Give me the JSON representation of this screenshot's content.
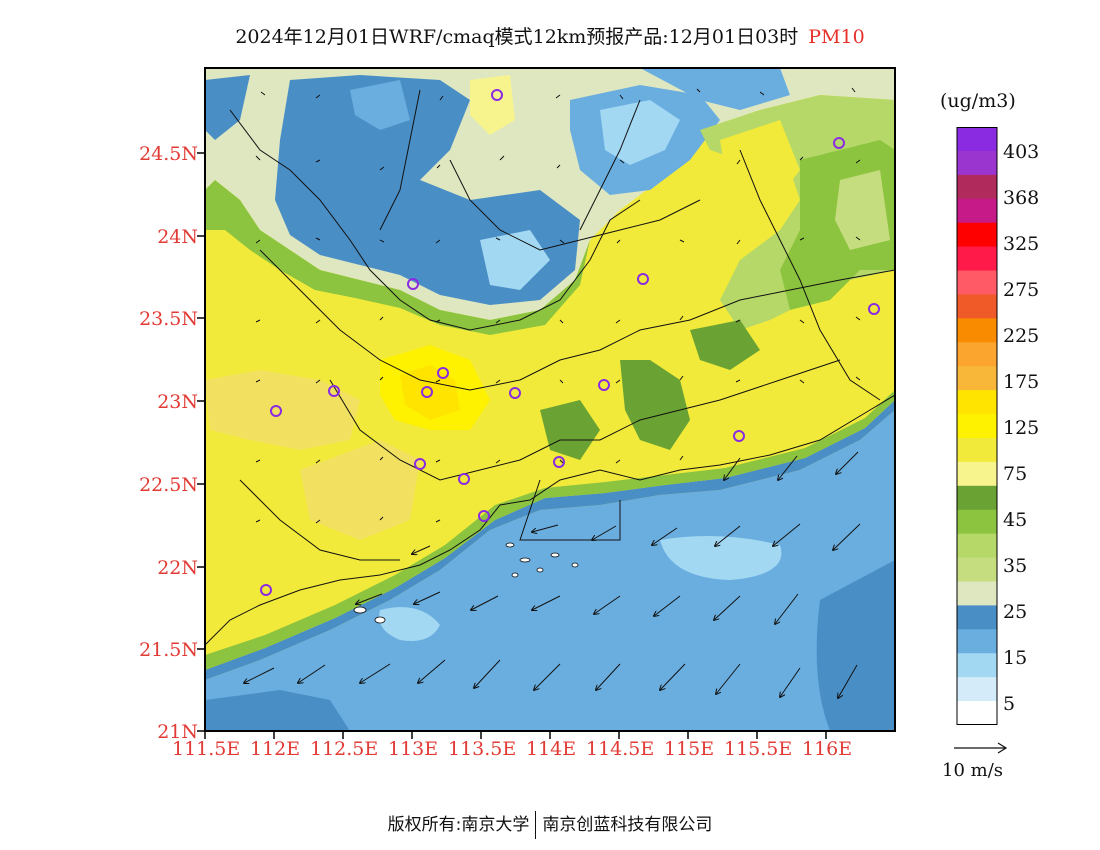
{
  "title": {
    "main": "2024年12月01日WRF/cmaq模式12km预报产品:12月01日03时",
    "pollutant": "PM10"
  },
  "map": {
    "lat_ticks": [
      "24.5N",
      "24N",
      "23.5N",
      "23N",
      "22.5N",
      "22N",
      "21.5N",
      "21N"
    ],
    "lon_ticks": [
      "111.5E",
      "112E",
      "112.5E",
      "113E",
      "113.5E",
      "114E",
      "114.5E",
      "115E",
      "115.5E",
      "116E"
    ],
    "lon_range": [
      111.5,
      116.5
    ],
    "lat_range": [
      21.0,
      25.0
    ]
  },
  "legend": {
    "unit": "(ug/m3)",
    "labels": [
      "403",
      "368",
      "325",
      "275",
      "225",
      "175",
      "125",
      "75",
      "45",
      "35",
      "25",
      "15",
      "5"
    ],
    "colors": [
      "#8a2be2",
      "#9b35d0",
      "#b02a5c",
      "#c51a88",
      "#ff0000",
      "#ff1a4a",
      "#ff5a66",
      "#f05a28",
      "#f98b00",
      "#fba52e",
      "#f8b739",
      "#ffe400",
      "#fff200",
      "#f2ea3a",
      "#f7f48e",
      "#6aa333",
      "#8cc43f",
      "#b5d868",
      "#c6dd7f",
      "#dfe7c0",
      "#4a8ec6",
      "#6aaee0",
      "#a3d8f3",
      "#d4ecfa",
      "#ffffff"
    ]
  },
  "wind": {
    "label": "10 m/s"
  },
  "footer": {
    "left": "版权所有:南京大学",
    "right": "南京创蓝科技有限公司"
  }
}
